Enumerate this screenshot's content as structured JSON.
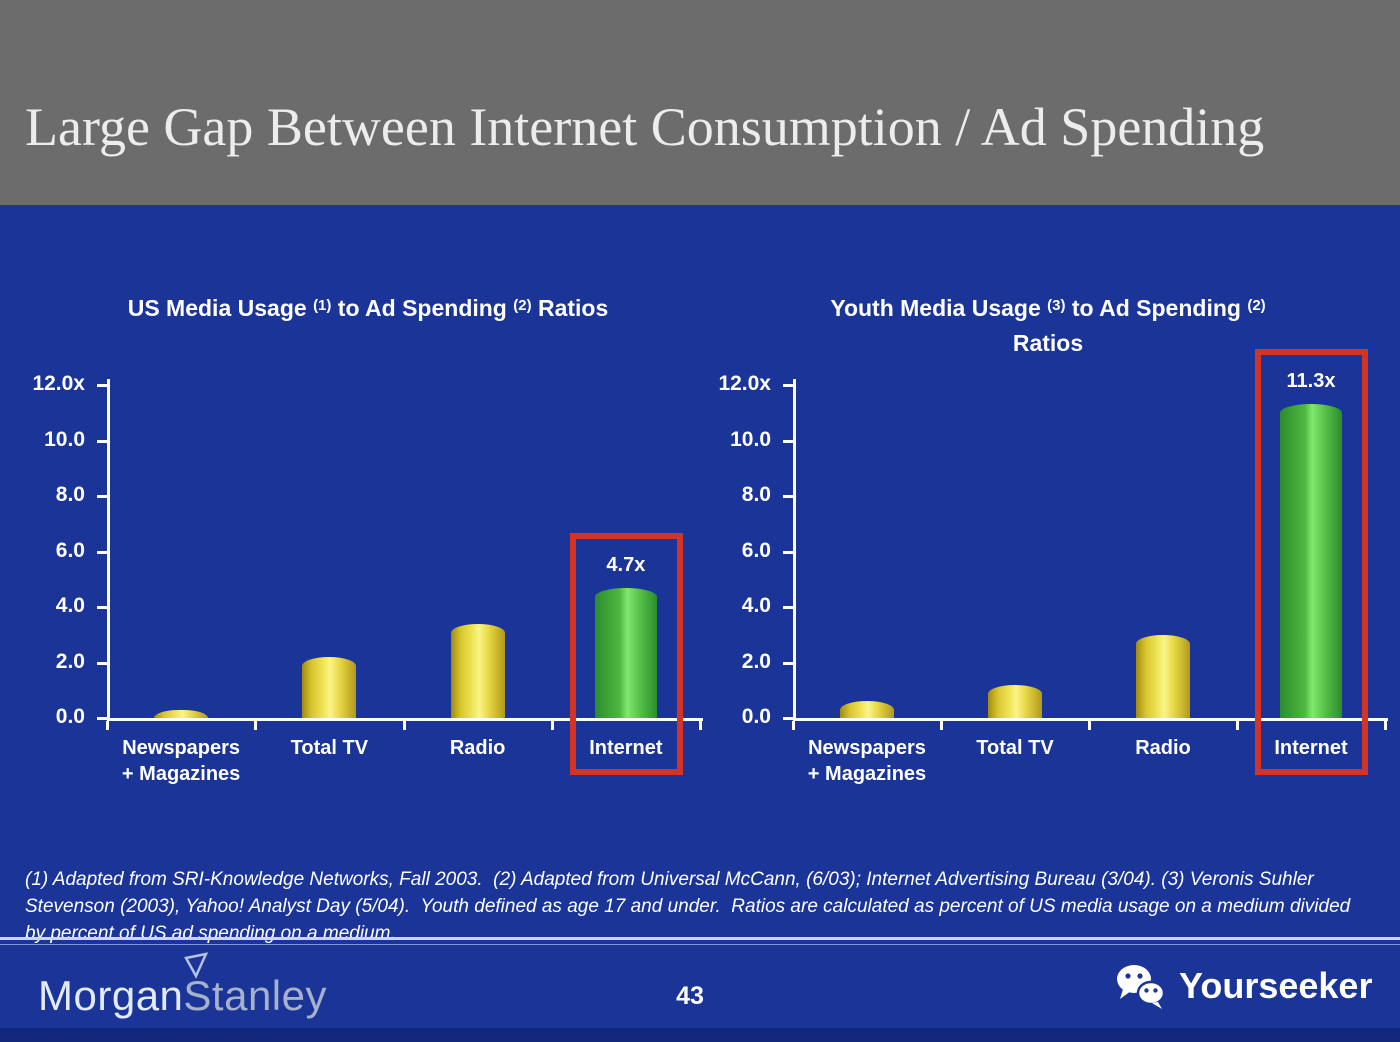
{
  "header": {
    "title": "Large Gap Between Internet Consumption / Ad Spending"
  },
  "footnote": {
    "lines": [
      "(1) Adapted from SRI-Knowledge Networks, Fall 2003.  (2) Adapted from Universal McCann, (6/03); Internet Advertising Bureau (3/04). (3) Veronis Suhler",
      "Stevenson (2003), Yahoo! Analyst Day (5/04).  Youth defined as age 17 and under.  Ratios are calculated as percent of US media usage on a medium divided",
      "by percent of US ad spending on a medium."
    ]
  },
  "footer": {
    "brand_word1": "Morgan",
    "brand_word2": "Stanley",
    "page_number": "43",
    "watermark": "Yourseeker"
  },
  "colors": {
    "slide_blue": "#1a3597",
    "header_gray": "#6c6c6c",
    "highlight_red": "#d23526",
    "bar_yellow": "#e8d93c",
    "bar_green": "#58c94b",
    "bottom_strip_blue": "#12287a",
    "text_white": "#ffffff"
  },
  "chart_data": [
    {
      "type": "bar",
      "title": "US Media Usage (1) to Ad Spending (2) Ratios",
      "title_parts": [
        {
          "text": "US Media Usage "
        },
        {
          "sup": "(1)"
        },
        {
          "text": " to Ad Spending "
        },
        {
          "sup": "(2)"
        },
        {
          "text": " Ratios"
        }
      ],
      "categories": [
        "Newspapers\n+ Magazines",
        "Total TV",
        "Radio",
        "Internet"
      ],
      "values": [
        0.3,
        2.2,
        3.4,
        4.7
      ],
      "bar_colors": [
        "yellow",
        "yellow",
        "yellow",
        "green"
      ],
      "highlight": {
        "index": 3,
        "label": "4.7x"
      },
      "xlabel": "",
      "ylabel": "",
      "ylim": [
        0,
        12
      ],
      "ytick_labels": [
        "12.0x",
        "10.0",
        "8.0",
        "6.0",
        "4.0",
        "2.0",
        "0.0"
      ],
      "grid": false,
      "legend": null
    },
    {
      "type": "bar",
      "title": "Youth Media Usage (3) to Ad Spending (2) Ratios",
      "title_parts": [
        {
          "text": "Youth Media Usage "
        },
        {
          "sup": "(3)"
        },
        {
          "text": " to Ad Spending "
        },
        {
          "sup": "(2)"
        },
        {
          "br": true
        },
        {
          "text": "Ratios"
        }
      ],
      "categories": [
        "Newspapers\n+ Magazines",
        "Total TV",
        "Radio",
        "Internet"
      ],
      "values": [
        0.6,
        1.2,
        3.0,
        11.3
      ],
      "bar_colors": [
        "yellow",
        "yellow",
        "yellow",
        "green"
      ],
      "highlight": {
        "index": 3,
        "label": "11.3x"
      },
      "xlabel": "",
      "ylabel": "",
      "ylim": [
        0,
        12
      ],
      "ytick_labels": [
        "12.0x",
        "10.0",
        "8.0",
        "6.0",
        "4.0",
        "2.0",
        "0.0"
      ],
      "grid": false,
      "legend": null
    }
  ]
}
